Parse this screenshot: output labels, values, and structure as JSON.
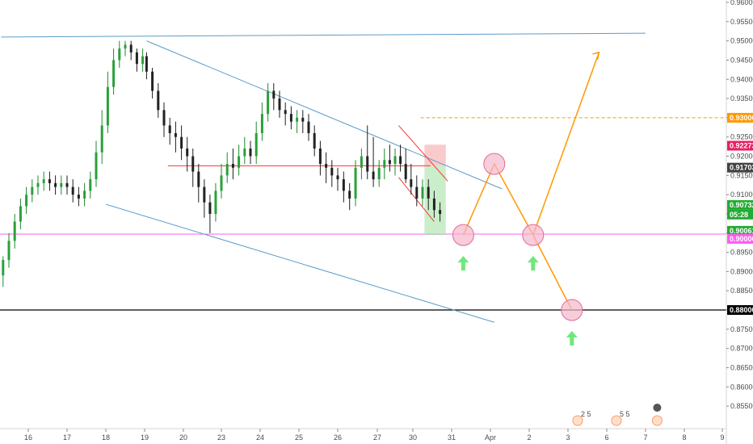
{
  "chart_data": {
    "type": "candlestick",
    "title": "",
    "xlabel": "",
    "ylabel": "",
    "ylim": [
      0.8465,
      0.961
    ],
    "x_ticks": [
      "16",
      "17",
      "18",
      "19",
      "20",
      "23",
      "24",
      "25",
      "26",
      "27",
      "30",
      "31",
      "Apr",
      "2",
      "3",
      "6",
      "7",
      "8",
      "9"
    ],
    "y_ticks": [
      "0.96000",
      "0.95500",
      "0.95000",
      "0.94500",
      "0.94000",
      "0.93500",
      "0.93000",
      "0.92500",
      "0.92000",
      "0.91500",
      "0.91000",
      "0.90500",
      "0.90000",
      "0.89500",
      "0.89000",
      "0.88500",
      "0.88000",
      "0.87500",
      "0.87000",
      "0.86500",
      "0.86000",
      "0.85500"
    ],
    "price_badges": [
      {
        "label": "0.93000",
        "value": 0.93,
        "color": "#ff9800"
      },
      {
        "label": "0.92273",
        "value": 0.92273,
        "color": "#e91e63"
      },
      {
        "label": "0.91703",
        "value": 0.91703,
        "color": "#424242"
      },
      {
        "label": "0.90732",
        "value": 0.90732,
        "color": "#22ab33"
      },
      {
        "label": "05:28",
        "value": 0.90482,
        "color": "#22ab33"
      },
      {
        "label": "0.90061",
        "value": 0.90061,
        "color": "#22ab33"
      },
      {
        "label": "0.90000",
        "value": 0.8985,
        "color": "#ff5cf4"
      },
      {
        "label": "0.88000",
        "value": 0.88,
        "color": "#000000"
      }
    ],
    "horizontal_lines": [
      {
        "value": 0.93,
        "color": "#ff9800",
        "style": "dashed",
        "x_from_day": 26.2
      },
      {
        "value": 0.89975,
        "color": "#ff5cf4",
        "style": "solid"
      },
      {
        "value": 0.88,
        "color": "#000000",
        "style": "solid"
      }
    ],
    "trend_lines": [
      {
        "color": "#5a9cc9",
        "points": [
          [
            15.3,
            0.951
          ],
          [
            32.0,
            0.952
          ]
        ]
      },
      {
        "color": "#5a9cc9",
        "points": [
          [
            19.05,
            0.95
          ],
          [
            28.3,
            0.9115
          ]
        ]
      },
      {
        "color": "#5a9cc9",
        "points": [
          [
            18.0,
            0.9075
          ],
          [
            28.1,
            0.8768
          ]
        ]
      },
      {
        "color": "#ff3333",
        "points": [
          [
            25.6,
            0.928
          ],
          [
            26.9,
            0.9135
          ]
        ]
      },
      {
        "color": "#ff3333",
        "points": [
          [
            25.6,
            0.9145
          ],
          [
            26.55,
            0.903
          ]
        ]
      },
      {
        "color": "#ff3333",
        "points": [
          [
            19.6,
            0.9175
          ],
          [
            26.45,
            0.9175
          ]
        ]
      }
    ],
    "projection_path": [
      [
        27.3,
        0.8995
      ],
      [
        28.1,
        0.918
      ],
      [
        29.1,
        0.8995
      ],
      [
        30.1,
        0.88
      ]
    ],
    "projection_breakout": [
      [
        29.1,
        0.8995
      ],
      [
        30.8,
        0.947
      ]
    ],
    "projection_color": "#ff9800",
    "circle_days": [
      27.3,
      28.1,
      29.1,
      30.1
    ],
    "arrow_up_days": [
      27.3,
      29.1,
      30.1
    ],
    "position_box": {
      "x_from_day": 26.3,
      "x_to_day": 26.85,
      "entry": 0.9175,
      "stop": 0.923,
      "target": 0.8995
    },
    "series": [
      {
        "name": "",
        "x": [
          15.2,
          15.35,
          15.5,
          15.65,
          15.8,
          15.95,
          16.1,
          16.25,
          16.4,
          16.55,
          16.7,
          16.85,
          17.0,
          17.15,
          17.3,
          17.45,
          17.6,
          17.75,
          17.9,
          18.05,
          18.2,
          18.35,
          18.5,
          18.65,
          18.8,
          18.95,
          19.05,
          19.2,
          19.35,
          19.5,
          19.65,
          19.8,
          19.95,
          20.1,
          20.25,
          20.4,
          20.55,
          20.7,
          20.85,
          21.0,
          21.15,
          21.3,
          21.45,
          21.6,
          21.75,
          21.9,
          22.05,
          22.2,
          22.35,
          22.5,
          22.65,
          22.8,
          22.95,
          23.1,
          23.25,
          23.4,
          23.55,
          23.7,
          23.85,
          24.0,
          24.15,
          24.3,
          24.45,
          24.6,
          24.75,
          24.9,
          25.05,
          25.2,
          25.35,
          25.5,
          25.65,
          25.8,
          25.95,
          26.1,
          26.25,
          26.4,
          26.55,
          26.7
        ],
        "open": [
          0.89,
          0.889,
          0.893,
          0.898,
          0.903,
          0.907,
          0.91,
          0.912,
          0.913,
          0.914,
          0.913,
          0.912,
          0.913,
          0.912,
          0.91,
          0.909,
          0.911,
          0.914,
          0.921,
          0.928,
          0.938,
          0.945,
          0.948,
          0.949,
          0.947,
          0.944,
          0.946,
          0.942,
          0.937,
          0.932,
          0.928,
          0.926,
          0.925,
          0.922,
          0.92,
          0.916,
          0.912,
          0.908,
          0.905,
          0.911,
          0.915,
          0.918,
          0.917,
          0.92,
          0.922,
          0.92,
          0.926,
          0.931,
          0.937,
          0.935,
          0.932,
          0.931,
          0.929,
          0.93,
          0.929,
          0.926,
          0.922,
          0.918,
          0.917,
          0.915,
          0.914,
          0.911,
          0.909,
          0.917,
          0.92,
          0.916,
          0.914,
          0.917,
          0.919,
          0.918,
          0.92,
          0.918,
          0.914,
          0.912,
          0.909,
          0.912,
          0.909,
          0.906
        ],
        "close": [
          0.889,
          0.893,
          0.898,
          0.903,
          0.907,
          0.91,
          0.912,
          0.913,
          0.914,
          0.913,
          0.912,
          0.913,
          0.912,
          0.91,
          0.909,
          0.911,
          0.914,
          0.921,
          0.928,
          0.938,
          0.945,
          0.948,
          0.949,
          0.947,
          0.944,
          0.946,
          0.942,
          0.937,
          0.932,
          0.928,
          0.926,
          0.925,
          0.922,
          0.92,
          0.916,
          0.912,
          0.908,
          0.905,
          0.911,
          0.915,
          0.918,
          0.917,
          0.92,
          0.922,
          0.92,
          0.926,
          0.931,
          0.937,
          0.935,
          0.932,
          0.931,
          0.929,
          0.93,
          0.929,
          0.926,
          0.922,
          0.918,
          0.917,
          0.915,
          0.914,
          0.911,
          0.909,
          0.917,
          0.92,
          0.916,
          0.914,
          0.917,
          0.919,
          0.918,
          0.92,
          0.918,
          0.914,
          0.912,
          0.909,
          0.912,
          0.909,
          0.906,
          0.905
        ],
        "high": [
          0.892,
          0.894,
          0.9,
          0.905,
          0.909,
          0.912,
          0.914,
          0.915,
          0.916,
          0.916,
          0.915,
          0.915,
          0.915,
          0.914,
          0.912,
          0.913,
          0.916,
          0.924,
          0.932,
          0.942,
          0.948,
          0.95,
          0.95,
          0.95,
          0.948,
          0.948,
          0.947,
          0.943,
          0.939,
          0.934,
          0.93,
          0.929,
          0.928,
          0.925,
          0.922,
          0.918,
          0.914,
          0.91,
          0.913,
          0.918,
          0.921,
          0.922,
          0.923,
          0.925,
          0.924,
          0.929,
          0.934,
          0.939,
          0.939,
          0.937,
          0.934,
          0.933,
          0.932,
          0.932,
          0.931,
          0.928,
          0.924,
          0.921,
          0.919,
          0.917,
          0.916,
          0.913,
          0.919,
          0.922,
          0.928,
          0.925,
          0.919,
          0.922,
          0.923,
          0.922,
          0.923,
          0.922,
          0.918,
          0.915,
          0.914,
          0.914,
          0.911,
          0.908
        ],
        "low": [
          0.887,
          0.886,
          0.891,
          0.896,
          0.901,
          0.905,
          0.908,
          0.91,
          0.911,
          0.911,
          0.91,
          0.91,
          0.91,
          0.908,
          0.907,
          0.907,
          0.909,
          0.912,
          0.918,
          0.926,
          0.936,
          0.943,
          0.946,
          0.945,
          0.942,
          0.942,
          0.94,
          0.935,
          0.93,
          0.925,
          0.923,
          0.921,
          0.919,
          0.916,
          0.912,
          0.908,
          0.904,
          0.9,
          0.903,
          0.909,
          0.913,
          0.914,
          0.915,
          0.918,
          0.918,
          0.918,
          0.924,
          0.929,
          0.932,
          0.93,
          0.928,
          0.927,
          0.926,
          0.926,
          0.924,
          0.92,
          0.915,
          0.913,
          0.912,
          0.911,
          0.908,
          0.906,
          0.907,
          0.914,
          0.914,
          0.912,
          0.912,
          0.914,
          0.916,
          0.915,
          0.916,
          0.913,
          0.91,
          0.907,
          0.907,
          0.906,
          0.904,
          0.903
        ]
      }
    ],
    "events": [
      {
        "day": 30.25,
        "label": "2 5"
      },
      {
        "day": 31.25,
        "label": "5 5"
      },
      {
        "day": 32.3,
        "label": ""
      }
    ],
    "grid": false
  }
}
